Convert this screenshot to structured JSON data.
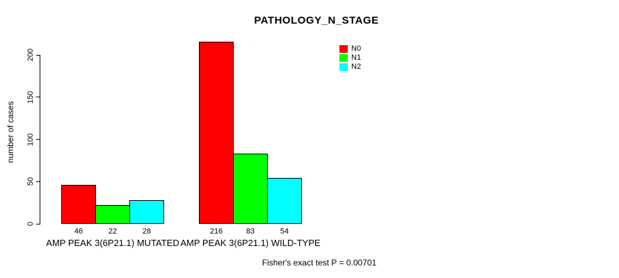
{
  "chart_data": {
    "type": "bar",
    "title": "PATHOLOGY_N_STAGE",
    "xlabel": "",
    "ylabel": "number of cases",
    "categories": [
      "AMP PEAK 3(6P21.1) MUTATED",
      "AMP PEAK 3(6P21.1) WILD-TYPE"
    ],
    "series": [
      {
        "name": "N0",
        "color": "#ff0000",
        "values": [
          46,
          216
        ]
      },
      {
        "name": "N1",
        "color": "#00ff00",
        "values": [
          22,
          83
        ]
      },
      {
        "name": "N2",
        "color": "#00ffff",
        "values": [
          28,
          54
        ]
      }
    ],
    "bar_value_labels": [
      [
        46,
        22,
        28
      ],
      [
        216,
        83,
        54
      ]
    ],
    "yticks": [
      0,
      50,
      100,
      150,
      200
    ],
    "ylim": [
      0,
      220
    ],
    "grid": false,
    "legend_position": "top-right",
    "legend_entries": [
      "N0",
      "N1",
      "N2"
    ],
    "annotation": "Fisher's exact test P = 0.00701",
    "colors": {
      "background": "#ffffff",
      "axis": "#000000",
      "text": "#000000"
    }
  }
}
